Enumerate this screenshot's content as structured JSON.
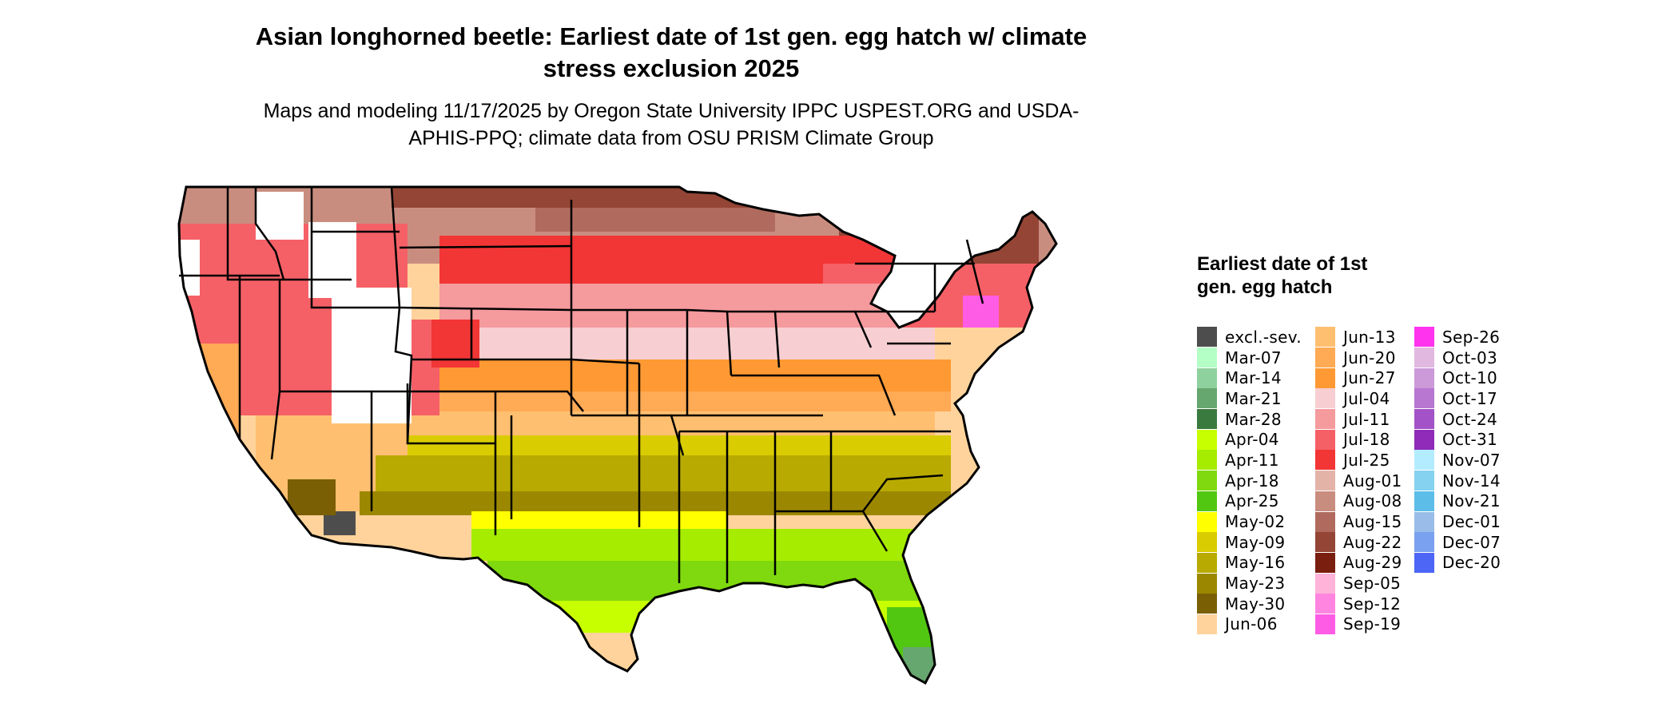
{
  "title": "Asian longhorned beetle: Earliest date of 1st gen. egg hatch w/ climate stress exclusion 2025",
  "subtitle": "Maps and modeling 11/17/2025 by Oregon State University IPPC USPEST.ORG and USDA-APHIS-PPQ; climate data from OSU PRISM Climate Group",
  "legend": {
    "title": "Earliest date of 1st gen. egg hatch",
    "items": [
      {
        "label": "excl.-sev.",
        "color": "#4d4d4d"
      },
      {
        "label": "Mar-07",
        "color": "#b3ffc6"
      },
      {
        "label": "Mar-14",
        "color": "#8fd19e"
      },
      {
        "label": "Mar-21",
        "color": "#66a66f"
      },
      {
        "label": "Mar-28",
        "color": "#3a7a3f"
      },
      {
        "label": "Apr-04",
        "color": "#c8ff00"
      },
      {
        "label": "Apr-11",
        "color": "#a6ec00"
      },
      {
        "label": "Apr-18",
        "color": "#7fd90e"
      },
      {
        "label": "Apr-25",
        "color": "#52c712"
      },
      {
        "label": "May-02",
        "color": "#ffff00"
      },
      {
        "label": "May-09",
        "color": "#d9cc00"
      },
      {
        "label": "May-16",
        "color": "#b8aa00"
      },
      {
        "label": "May-23",
        "color": "#9c8800"
      },
      {
        "label": "May-30",
        "color": "#7a5f05"
      },
      {
        "label": "Jun-06",
        "color": "#ffd39b"
      },
      {
        "label": "Jun-13",
        "color": "#ffbf70"
      },
      {
        "label": "Jun-20",
        "color": "#ffaa55"
      },
      {
        "label": "Jun-27",
        "color": "#ff9933"
      },
      {
        "label": "Jul-04",
        "color": "#f7cfd2"
      },
      {
        "label": "Jul-11",
        "color": "#f59a9d"
      },
      {
        "label": "Jul-18",
        "color": "#f56066"
      },
      {
        "label": "Jul-25",
        "color": "#f23535"
      },
      {
        "label": "Aug-01",
        "color": "#e3b3a8"
      },
      {
        "label": "Aug-08",
        "color": "#c98d80"
      },
      {
        "label": "Aug-15",
        "color": "#b06b5e"
      },
      {
        "label": "Aug-22",
        "color": "#944535"
      },
      {
        "label": "Aug-29",
        "color": "#7a1f0f"
      },
      {
        "label": "Sep-05",
        "color": "#ffb3d9"
      },
      {
        "label": "Sep-12",
        "color": "#ff85e0"
      },
      {
        "label": "Sep-19",
        "color": "#ff5ce6"
      },
      {
        "label": "Sep-26",
        "color": "#ff33ee"
      },
      {
        "label": "Oct-03",
        "color": "#e0b8e0"
      },
      {
        "label": "Oct-10",
        "color": "#cc99d9"
      },
      {
        "label": "Oct-17",
        "color": "#b877d1"
      },
      {
        "label": "Oct-24",
        "color": "#a352c7"
      },
      {
        "label": "Oct-31",
        "color": "#8f2bb8"
      },
      {
        "label": "Nov-07",
        "color": "#b3ecff"
      },
      {
        "label": "Nov-14",
        "color": "#85d1f0"
      },
      {
        "label": "Nov-21",
        "color": "#5cbde8"
      },
      {
        "label": "Dec-01",
        "color": "#99bde8"
      },
      {
        "label": "Dec-07",
        "color": "#7aa0f0"
      },
      {
        "label": "Dec-20",
        "color": "#4d66f5"
      }
    ]
  }
}
